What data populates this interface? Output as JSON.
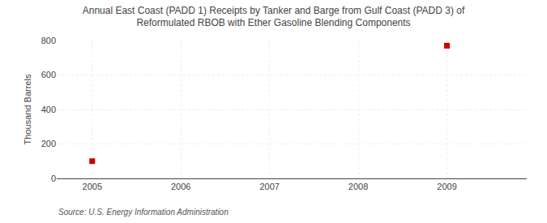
{
  "chart_data": {
    "type": "scatter",
    "title": "Annual East Coast (PADD 1) Receipts by Tanker and Barge from Gulf Coast (PADD 3) of\nReformulated RBOB with Ether Gasoline Blending Components",
    "ylabel": "Thousand Barrels",
    "source": "Source: U.S. Energy Information Administration",
    "x": [
      2005,
      2009
    ],
    "values": [
      100,
      770
    ],
    "color": "#cc0000",
    "marker": "square",
    "xlim": [
      2004.6,
      2009.9
    ],
    "ylim": [
      0,
      800
    ],
    "xticks": [
      2005,
      2006,
      2007,
      2008,
      2009
    ],
    "yticks": [
      0,
      200,
      400,
      600,
      800
    ],
    "grid": true
  }
}
